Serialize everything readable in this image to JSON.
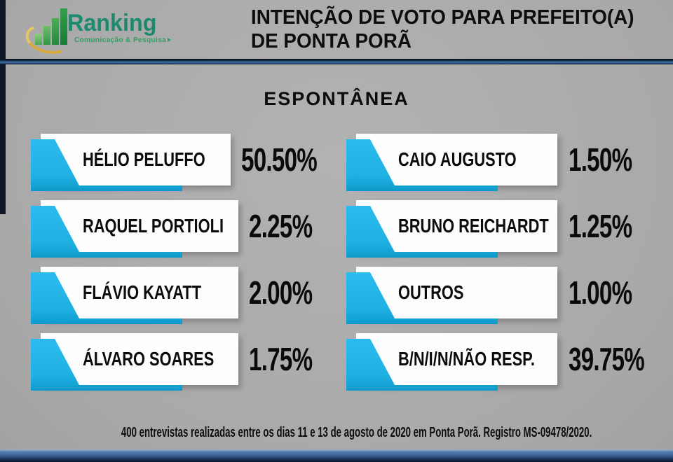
{
  "brand": {
    "name": "Ranking",
    "tagline": "Comunicação & Pesquisa"
  },
  "header": {
    "title_line1": "INTENÇÃO DE VOTO PARA PREFEITO(A)",
    "title_line2": "DE PONTA PORÃ"
  },
  "subtitle": "ESPONTÂNEA",
  "results": {
    "left": [
      {
        "name": "HÉLIO PELUFFO",
        "pct": "50.50%"
      },
      {
        "name": "RAQUEL PORTIOLI",
        "pct": "2.25%"
      },
      {
        "name": "FLÁVIO KAYATT",
        "pct": "2.00%"
      },
      {
        "name": "ÁLVARO SOARES",
        "pct": "1.75%"
      }
    ],
    "right": [
      {
        "name": "CAIO AUGUSTO",
        "pct": "1.50%"
      },
      {
        "name": "BRUNO REICHARDT",
        "pct": "1.25%"
      },
      {
        "name": "OUTROS",
        "pct": "1.00%"
      },
      {
        "name": "B/N/I/N/NÃO RESP.",
        "pct": "39.75%"
      }
    ]
  },
  "footer": "400 entrevistas realizadas entre os dias 11 e 13 de agosto de 2020 em Ponta Porã. Registro MS-09478/2020.",
  "chart_data": {
    "type": "table",
    "title": "INTENÇÃO DE VOTO PARA PREFEITO(A) DE PONTA PORÃ",
    "subtitle": "ESPONTÂNEA",
    "categories": [
      "HÉLIO PELUFFO",
      "RAQUEL PORTIOLI",
      "FLÁVIO KAYATT",
      "ÁLVARO SOARES",
      "CAIO AUGUSTO",
      "BRUNO REICHARDT",
      "OUTROS",
      "B/N/I/N/NÃO RESP."
    ],
    "values": [
      50.5,
      2.25,
      2.0,
      1.75,
      1.5,
      1.25,
      1.0,
      39.75
    ],
    "unit": "%",
    "sample_note": "400 entrevistas realizadas entre os dias 11 e 13 de agosto de 2020 em Ponta Porã",
    "registry": "MS-09478/2020"
  },
  "colors": {
    "accent_cyan": "#24b3e6",
    "divider_blue": "#3f6c9f",
    "background_gray": "#a9a9a9",
    "logo_green": "#1d8a6e",
    "swoosh_gold": "#d9a93c"
  }
}
